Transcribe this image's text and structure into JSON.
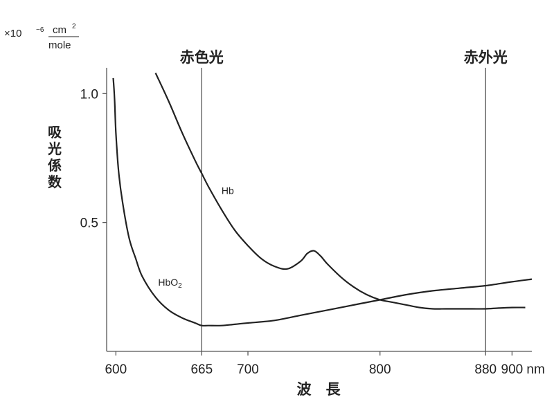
{
  "chart_data": {
    "type": "line",
    "title": "",
    "xlabel": "波　長",
    "ylabel": "吸光係数",
    "y_unit": {
      "prefix": "×10",
      "exponent": "−6",
      "numerator": "cm",
      "numerator_sup": "2",
      "denominator": "mole"
    },
    "xlim": [
      593,
      915
    ],
    "ylim": [
      0,
      1.1
    ],
    "x_ticks": [
      {
        "value": 600,
        "label": "600"
      },
      {
        "value": 665,
        "label": "665"
      },
      {
        "value": 700,
        "label": "700"
      },
      {
        "value": 800,
        "label": "800"
      },
      {
        "value": 880,
        "label": "880"
      },
      {
        "value": 900,
        "label": "900"
      }
    ],
    "x_unit": "nm",
    "y_ticks": [
      {
        "value": 0.5,
        "label": "0.5"
      },
      {
        "value": 1.0,
        "label": "1.0"
      }
    ],
    "markers": [
      {
        "x": 665,
        "label": "赤色光"
      },
      {
        "x": 880,
        "label": "赤外光"
      }
    ],
    "series": [
      {
        "name": "Hb",
        "label_at": [
          680,
          0.61
        ],
        "x": [
          630,
          640,
          650,
          660,
          665,
          670,
          680,
          690,
          700,
          710,
          720,
          730,
          740,
          745,
          750,
          755,
          760,
          770,
          780,
          790,
          800,
          810,
          820,
          830,
          840,
          850,
          860,
          870,
          880,
          890,
          900,
          910
        ],
        "y": [
          1.08,
          0.97,
          0.85,
          0.74,
          0.69,
          0.64,
          0.55,
          0.47,
          0.41,
          0.36,
          0.33,
          0.32,
          0.35,
          0.38,
          0.39,
          0.37,
          0.34,
          0.29,
          0.25,
          0.22,
          0.2,
          0.19,
          0.18,
          0.17,
          0.165,
          0.165,
          0.165,
          0.165,
          0.165,
          0.168,
          0.17,
          0.17
        ]
      },
      {
        "name": "HbO",
        "name_subscript": "2",
        "label_at": [
          632,
          0.255
        ],
        "x": [
          598,
          599,
          600,
          602,
          605,
          610,
          615,
          620,
          630,
          640,
          650,
          660,
          665,
          670,
          680,
          690,
          700,
          720,
          740,
          760,
          780,
          800,
          820,
          840,
          860,
          880,
          900,
          915
        ],
        "y": [
          1.06,
          0.98,
          0.85,
          0.7,
          0.58,
          0.44,
          0.36,
          0.29,
          0.21,
          0.16,
          0.13,
          0.11,
          0.1,
          0.1,
          0.1,
          0.105,
          0.11,
          0.12,
          0.14,
          0.16,
          0.18,
          0.2,
          0.22,
          0.235,
          0.245,
          0.255,
          0.27,
          0.28
        ]
      }
    ]
  }
}
